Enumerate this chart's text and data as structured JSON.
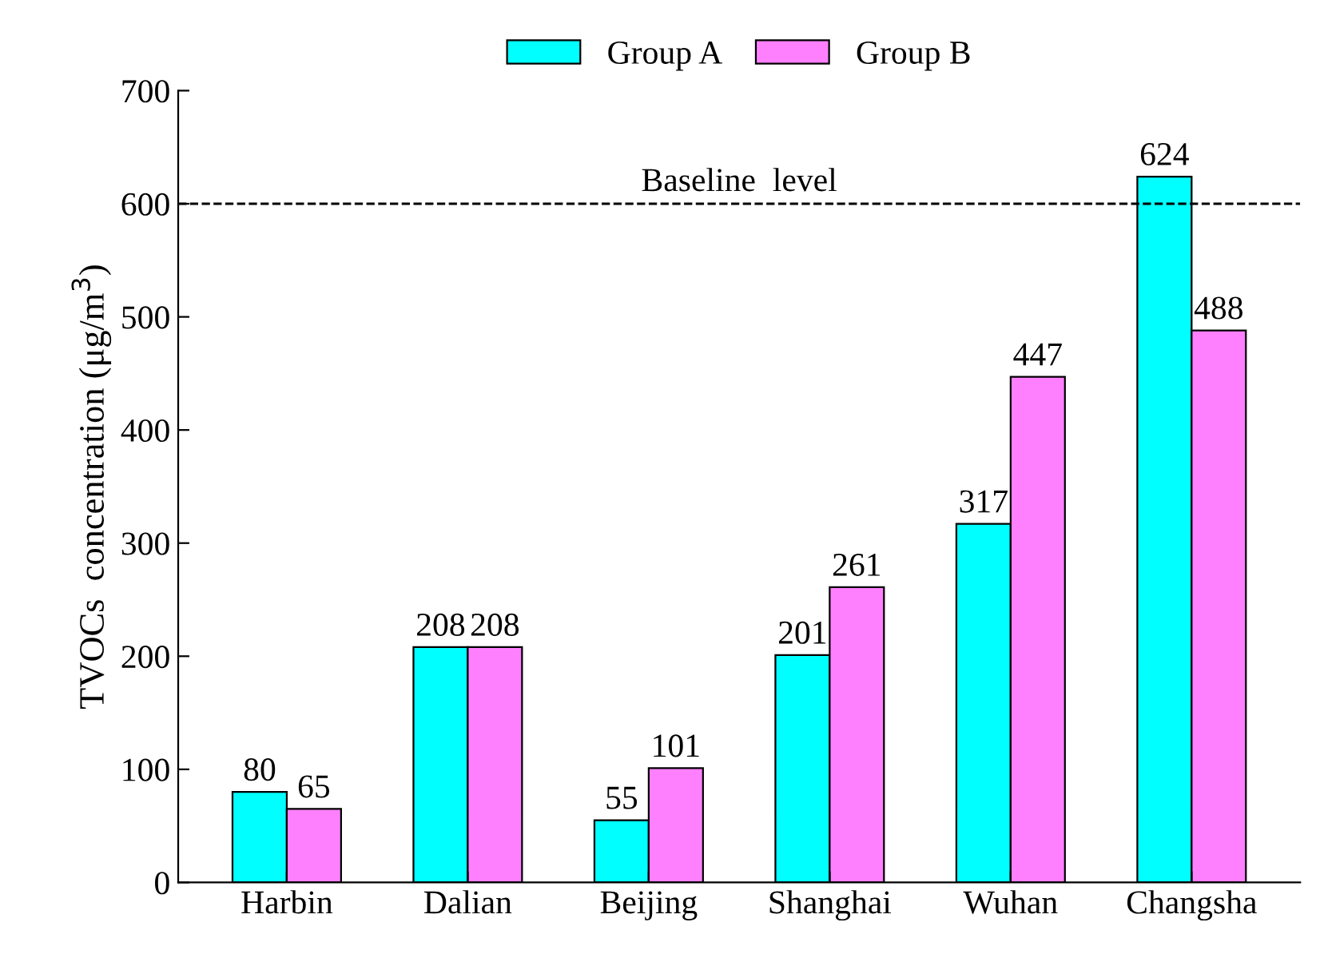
{
  "chart_data": {
    "type": "bar",
    "ylabel": "TVOCs  concentration (μg/m$^{3}$)",
    "categories": [
      "Harbin",
      "Dalian",
      "Beijing",
      "Shanghai",
      "Wuhan",
      "Changsha"
    ],
    "series": [
      {
        "name": "Group A",
        "color": "#00ffff",
        "values": [
          80,
          208,
          55,
          201,
          317,
          624
        ]
      },
      {
        "name": "Group B",
        "color": "#ff80ff",
        "values": [
          65,
          208,
          101,
          261,
          447,
          488
        ]
      }
    ],
    "ylim": [
      0,
      700
    ],
    "yticks": [
      0,
      100,
      200,
      300,
      400,
      500,
      600,
      700
    ],
    "ref_lines": [
      {
        "axis": "y",
        "value": 600,
        "label": "Baseline  level",
        "color": "#000000",
        "line_style": "dashed"
      }
    ],
    "data_labels": true,
    "legend": "top",
    "grid": false
  }
}
